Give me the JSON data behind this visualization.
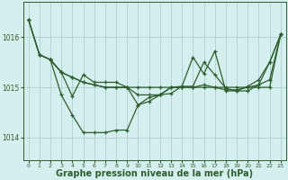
{
  "background_color": "#d5eeee",
  "grid_color": "#aad0d0",
  "line_color": "#2d5e2d",
  "xlabel": "Graphe pression niveau de la mer (hPa)",
  "xlabel_fontsize": 7,
  "yticks": [
    1014,
    1015,
    1016
  ],
  "xtick_labels": [
    "0",
    "1",
    "2",
    "3",
    "4",
    "5",
    "6",
    "7",
    "8",
    "9",
    "10",
    "11",
    "12",
    "13",
    "14",
    "15",
    "16",
    "17",
    "18",
    "19",
    "20",
    "21",
    "22",
    "23"
  ],
  "xticks": [
    0,
    1,
    2,
    3,
    4,
    5,
    6,
    7,
    8,
    9,
    10,
    11,
    12,
    13,
    14,
    15,
    16,
    17,
    18,
    19,
    20,
    21,
    22,
    23
  ],
  "ylim": [
    1013.55,
    1016.7
  ],
  "xlim": [
    -0.5,
    23.5
  ],
  "curve1_x": [
    0,
    1,
    2,
    3,
    4,
    5,
    6,
    7,
    8,
    9,
    10,
    11,
    12,
    13,
    14,
    15,
    16,
    17,
    18,
    19,
    20,
    21,
    22,
    23
  ],
  "curve1_y": [
    1016.35,
    1015.65,
    1015.55,
    1015.3,
    1015.2,
    1015.1,
    1015.05,
    1015.0,
    1015.0,
    1015.0,
    1015.0,
    1015.0,
    1015.0,
    1015.0,
    1015.0,
    1015.0,
    1015.0,
    1015.0,
    1015.0,
    1015.0,
    1015.0,
    1015.0,
    1015.0,
    1016.05
  ],
  "curve2_x": [
    0,
    1,
    2,
    3,
    4,
    5,
    6,
    7,
    8,
    9,
    10,
    11,
    12,
    13,
    14,
    15,
    16,
    17,
    18,
    19,
    20,
    21,
    22,
    23
  ],
  "curve2_y": [
    1016.35,
    1015.65,
    1015.55,
    1015.3,
    1015.2,
    1015.1,
    1015.05,
    1015.0,
    1015.0,
    1015.0,
    1014.85,
    1014.85,
    1014.85,
    1015.0,
    1015.0,
    1015.0,
    1015.05,
    1015.0,
    1014.95,
    1014.95,
    1015.0,
    1015.05,
    1015.15,
    1016.05
  ],
  "curve3_x": [
    0,
    1,
    2,
    3,
    4,
    5,
    6,
    7,
    8,
    9,
    10,
    11,
    12,
    13,
    14,
    15,
    16,
    17,
    18,
    19,
    20,
    21,
    22,
    23
  ],
  "curve3_y": [
    1016.35,
    1015.65,
    1015.55,
    1014.85,
    1014.45,
    1014.1,
    1014.1,
    1014.1,
    1014.15,
    1014.15,
    1014.65,
    1014.72,
    1014.85,
    1014.88,
    1015.02,
    1015.02,
    1015.5,
    1015.25,
    1014.98,
    1014.93,
    1014.93,
    1015.05,
    1015.5,
    1016.05
  ],
  "curve4_x": [
    2,
    3,
    4,
    5,
    6,
    7,
    8,
    9,
    10,
    11,
    12,
    13,
    14,
    15,
    16,
    17,
    18,
    19,
    20,
    21,
    22,
    23
  ],
  "curve4_y": [
    1015.55,
    1015.3,
    1014.82,
    1015.25,
    1015.1,
    1015.1,
    1015.1,
    1015.0,
    1014.65,
    1014.8,
    1014.85,
    1015.0,
    1015.02,
    1015.6,
    1015.27,
    1015.72,
    1014.93,
    1014.93,
    1015.02,
    1015.15,
    1015.5,
    1016.05
  ]
}
